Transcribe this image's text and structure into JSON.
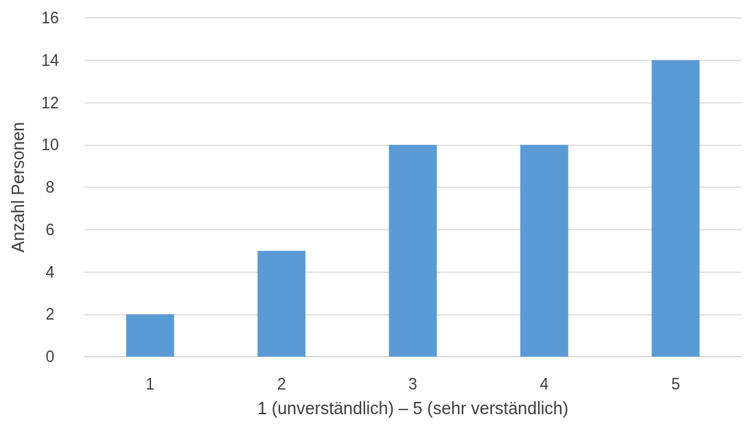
{
  "chart_data": {
    "type": "bar",
    "xlabel": "1 (unverständlich) – 5 (sehr verständlich)",
    "ylabel": "Anzahl Personen",
    "categories": [
      "1",
      "2",
      "3",
      "4",
      "5"
    ],
    "values": [
      2,
      5,
      10,
      10,
      14
    ],
    "color": "#5b9bd5",
    "ylim": [
      0,
      16
    ],
    "yticks": [
      0,
      2,
      4,
      6,
      8,
      10,
      12,
      14,
      16
    ],
    "grid": "y"
  }
}
